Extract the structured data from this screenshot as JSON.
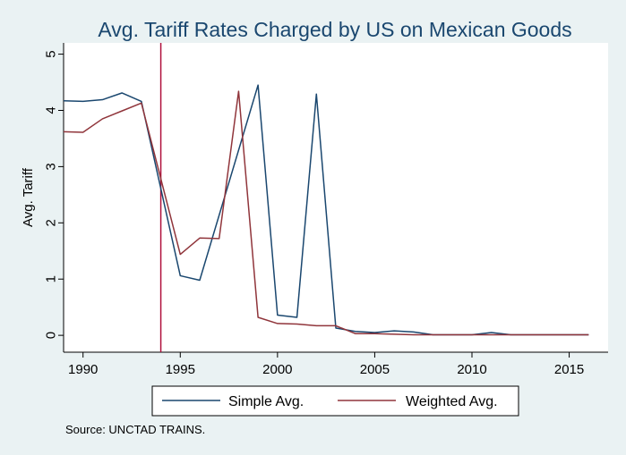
{
  "chart_data": {
    "type": "line",
    "title": "Avg. Tariff Rates Charged by US on Mexican Goods",
    "xlabel": "",
    "ylabel": "Avg. Tariff",
    "xlim": [
      1989,
      2017
    ],
    "ylim": [
      -0.3,
      5.2
    ],
    "xticks": [
      1990,
      1995,
      2000,
      2005,
      2010,
      2015
    ],
    "yticks": [
      0,
      1,
      2,
      3,
      4,
      5
    ],
    "grid": false,
    "legend_position": "bottom",
    "reference_line_x": 1994,
    "source": "Source: UNCTAD TRAINS.",
    "series": [
      {
        "name": "Simple Avg.",
        "color": "#1a476f",
        "x": [
          1989,
          1990,
          1991,
          1992,
          1993,
          1995,
          1996,
          1999,
          2000,
          2001,
          2002,
          2003,
          2004,
          2005,
          2006,
          2007,
          2008,
          2009,
          2010,
          2011,
          2012,
          2013,
          2014,
          2015,
          2016
        ],
        "y": [
          4.17,
          4.16,
          4.19,
          4.31,
          4.16,
          1.06,
          0.98,
          4.45,
          0.36,
          0.32,
          4.29,
          0.13,
          0.07,
          0.05,
          0.08,
          0.06,
          0.01,
          0.01,
          0.01,
          0.05,
          0.01,
          0.01,
          0.01,
          0.01,
          0.01
        ]
      },
      {
        "name": "Weighted Avg.",
        "color": "#90353b",
        "x": [
          1989,
          1990,
          1991,
          1992,
          1993,
          1995,
          1996,
          1997,
          1998,
          1999,
          2000,
          2001,
          2002,
          2003,
          2004,
          2005,
          2006,
          2007,
          2008,
          2009,
          2010,
          2011,
          2012,
          2013,
          2014,
          2015,
          2016
        ],
        "y": [
          3.62,
          3.61,
          3.85,
          3.99,
          4.13,
          1.44,
          1.73,
          1.72,
          4.34,
          0.32,
          0.21,
          0.2,
          0.17,
          0.17,
          0.03,
          0.03,
          0.02,
          0.01,
          0.01,
          0.01,
          0.01,
          0.01,
          0.01,
          0.01,
          0.01,
          0.01,
          0.01
        ]
      }
    ]
  }
}
